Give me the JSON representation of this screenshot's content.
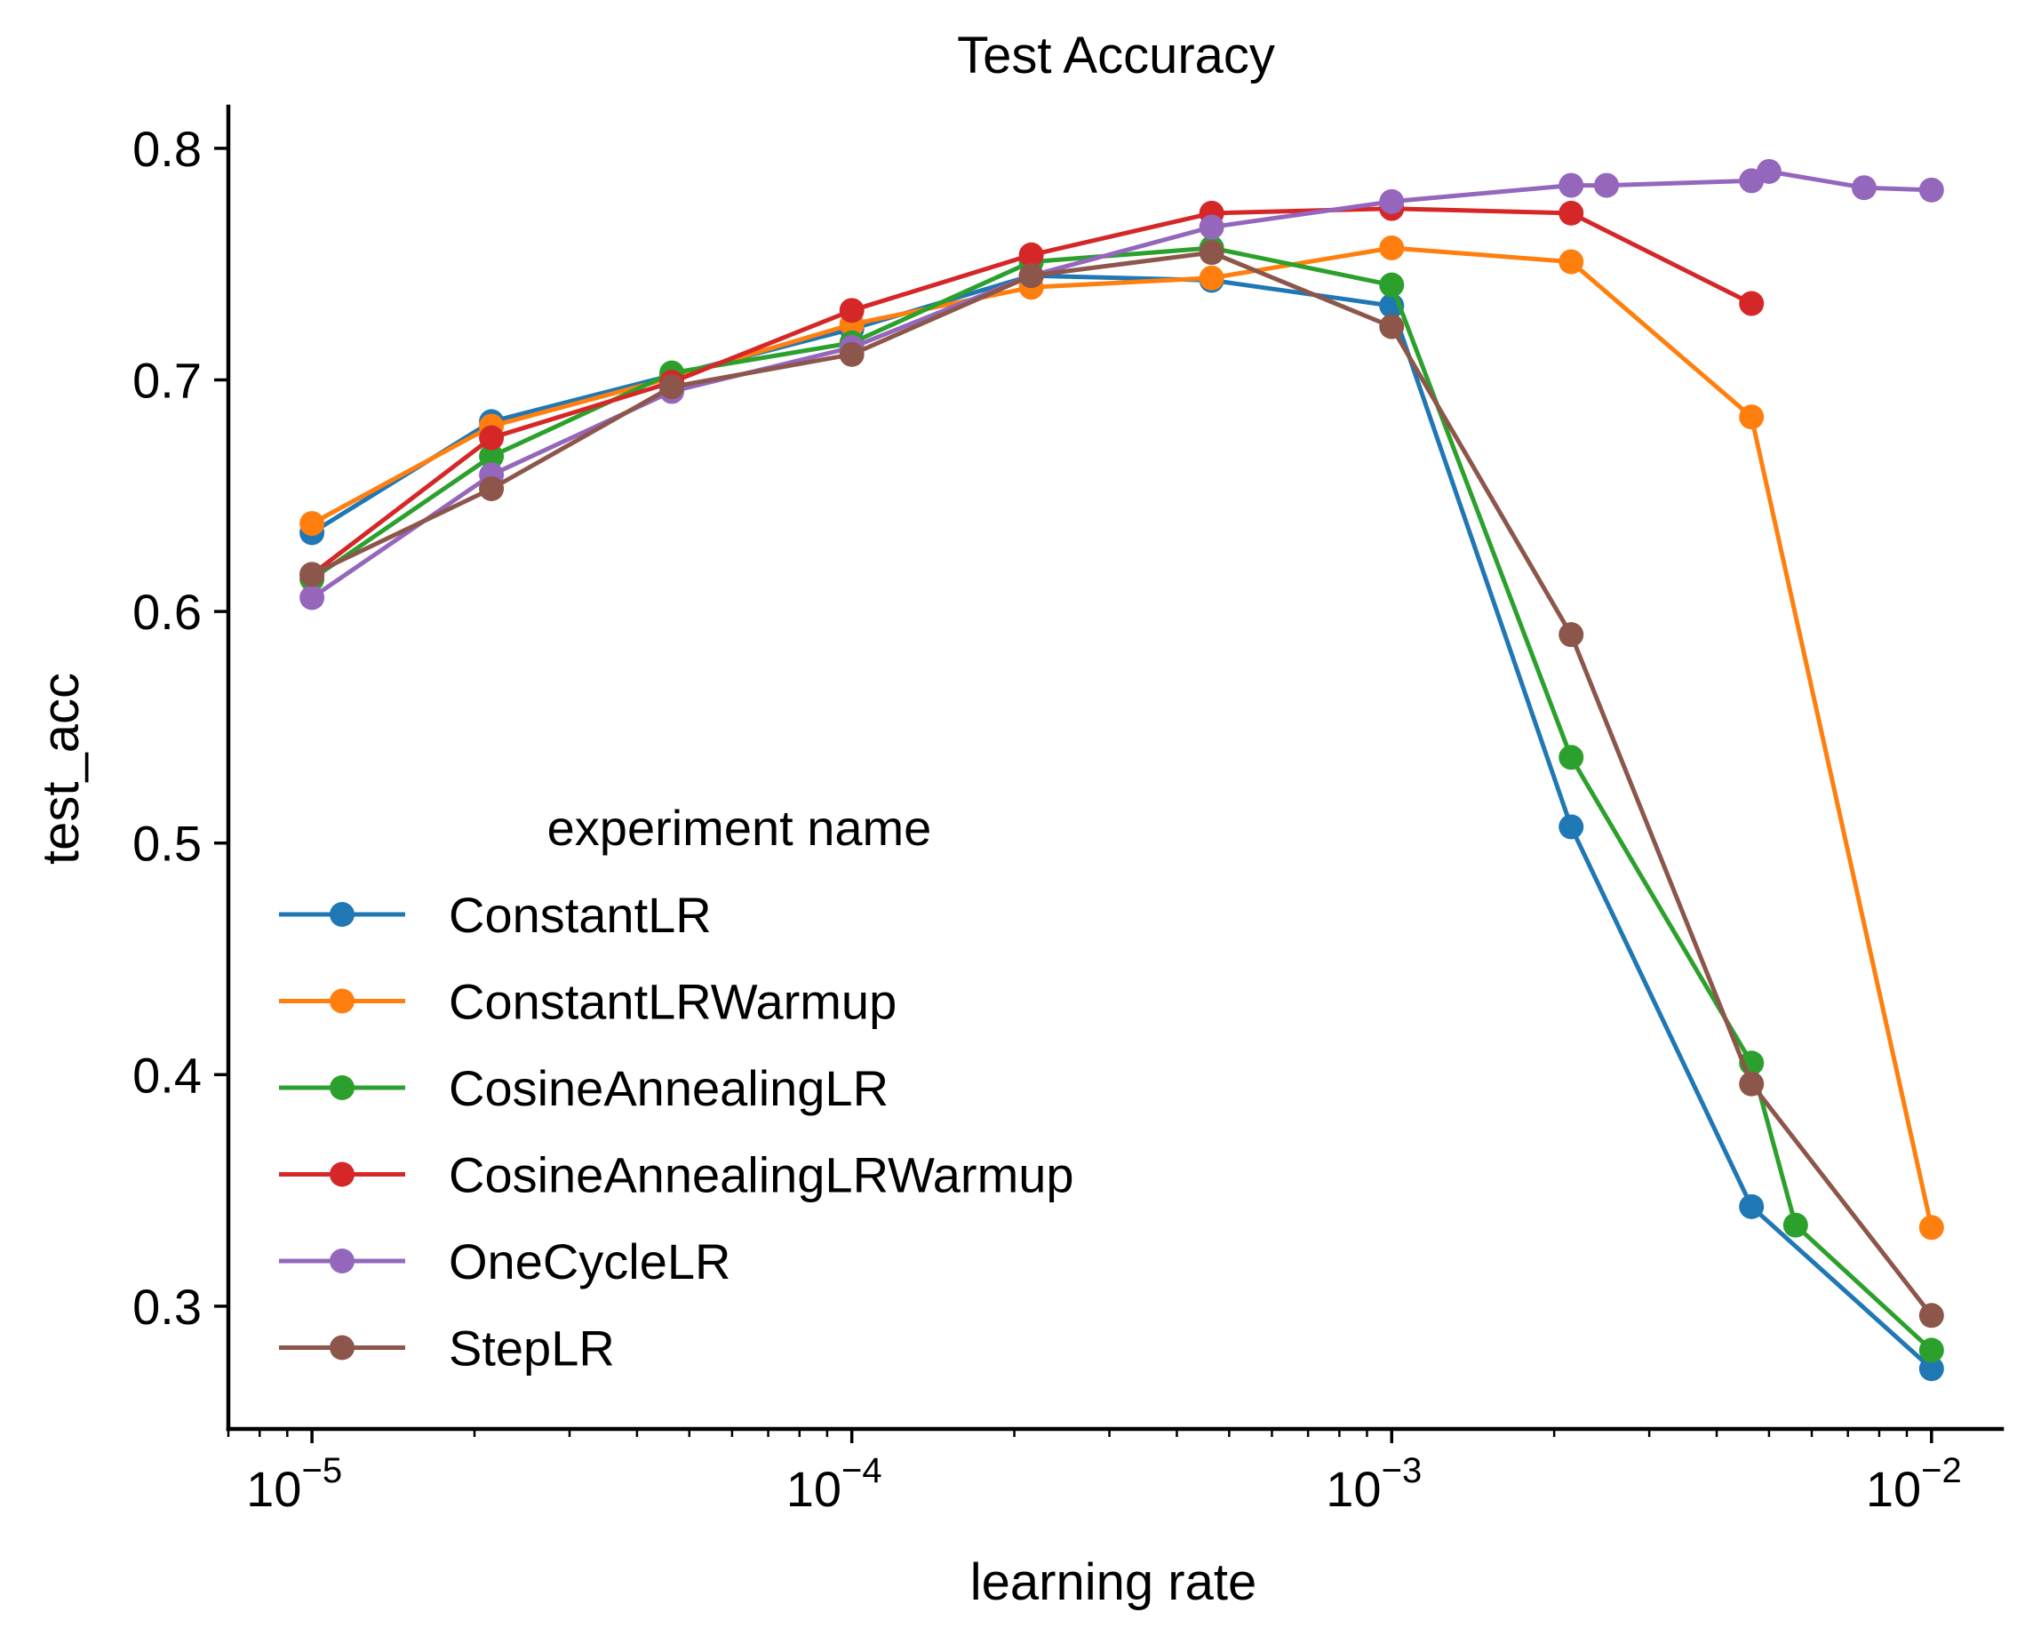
{
  "chart_data": {
    "type": "line",
    "title": "Test Accuracy",
    "xlabel": "learning rate",
    "ylabel": "test_acc",
    "xscale": "log",
    "xlim": [
      7e-06,
      0.0135
    ],
    "ylim": [
      0.247,
      0.818
    ],
    "x_ticks": [
      {
        "value": 1e-05,
        "base": "10",
        "exp": "−5"
      },
      {
        "value": 0.0001,
        "base": "10",
        "exp": "−4"
      },
      {
        "value": 0.001,
        "base": "10",
        "exp": "−3"
      },
      {
        "value": 0.01,
        "base": "10",
        "exp": "−2"
      }
    ],
    "y_ticks": [
      {
        "value": 0.3,
        "label": "0.3"
      },
      {
        "value": 0.4,
        "label": "0.4"
      },
      {
        "value": 0.5,
        "label": "0.5"
      },
      {
        "value": 0.6,
        "label": "0.6"
      },
      {
        "value": 0.7,
        "label": "0.7"
      },
      {
        "value": 0.8,
        "label": "0.8"
      }
    ],
    "grid": false,
    "legend": {
      "title": "experiment name",
      "placement": "lower-left"
    },
    "series": [
      {
        "name": "ConstantLR",
        "color": "#1f77b4",
        "x": [
          1e-05,
          2.15e-05,
          4.64e-05,
          0.0001,
          0.000215,
          0.000464,
          0.001,
          0.00215,
          0.00464,
          0.01
        ],
        "y": [
          0.634,
          0.682,
          0.702,
          0.722,
          0.745,
          0.743,
          0.732,
          0.507,
          0.343,
          0.273
        ]
      },
      {
        "name": "ConstantLRWarmup",
        "color": "#ff7f0e",
        "x": [
          1e-05,
          2.15e-05,
          4.64e-05,
          0.0001,
          0.000215,
          0.000464,
          0.001,
          0.00215,
          0.00464,
          0.01
        ],
        "y": [
          0.638,
          0.68,
          0.701,
          0.724,
          0.74,
          0.744,
          0.757,
          0.751,
          0.684,
          0.334
        ]
      },
      {
        "name": "CosineAnnealingLR",
        "color": "#2ca02c",
        "x": [
          1e-05,
          2.15e-05,
          4.64e-05,
          0.0001,
          0.000215,
          0.000464,
          0.001,
          0.00215,
          0.00464,
          0.0056,
          0.01
        ],
        "y": [
          0.614,
          0.667,
          0.703,
          0.716,
          0.751,
          0.757,
          0.741,
          0.537,
          0.405,
          0.335,
          0.281
        ]
      },
      {
        "name": "CosineAnnealingLRWarmup",
        "color": "#d62728",
        "x": [
          1e-05,
          2.15e-05,
          4.64e-05,
          0.0001,
          0.000215,
          0.000464,
          0.001,
          0.00215,
          0.00464
        ],
        "y": [
          0.616,
          0.675,
          0.699,
          0.73,
          0.754,
          0.772,
          0.774,
          0.772,
          0.733
        ]
      },
      {
        "name": "OneCycleLR",
        "color": "#9467bd",
        "x": [
          1e-05,
          2.15e-05,
          4.64e-05,
          0.0001,
          0.000215,
          0.000464,
          0.001,
          0.00215,
          0.0025,
          0.00464,
          0.005,
          0.0075,
          0.01
        ],
        "y": [
          0.606,
          0.659,
          0.695,
          0.714,
          0.745,
          0.766,
          0.777,
          0.784,
          0.784,
          0.786,
          0.79,
          0.783,
          0.782
        ]
      },
      {
        "name": "StepLR",
        "color": "#8c564b",
        "x": [
          1e-05,
          2.15e-05,
          4.64e-05,
          0.0001,
          0.000215,
          0.000464,
          0.001,
          0.00215,
          0.00464,
          0.01
        ],
        "y": [
          0.616,
          0.653,
          0.697,
          0.711,
          0.745,
          0.755,
          0.723,
          0.59,
          0.396,
          0.296
        ]
      }
    ]
  }
}
